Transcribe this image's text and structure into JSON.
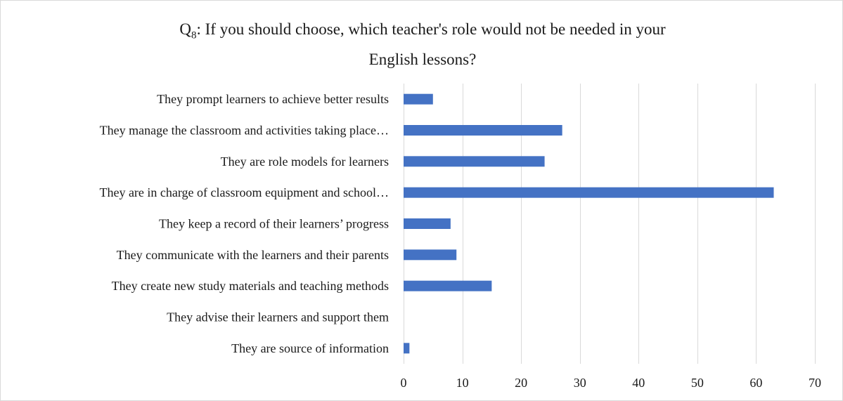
{
  "chart_data": {
    "type": "bar",
    "orientation": "horizontal",
    "title_prefix": "Q",
    "title_subscript": "8",
    "title_line1": ": If you should choose, which teacher's role would not be needed in your",
    "title_line2": "English lessons?",
    "categories": [
      "They prompt learners to achieve better results",
      "They manage the classroom and activities taking place…",
      "They are role models for learners",
      "They are in charge of classroom equipment and school…",
      "They keep a record of their learners’ progress",
      "They communicate with the learners and their parents",
      "They create new study materials and teaching methods",
      "They advise their learners and support them",
      "They are source of information"
    ],
    "values": [
      5,
      27,
      24,
      63,
      8,
      9,
      15,
      0,
      1
    ],
    "xlim": [
      0,
      70
    ],
    "xticks": [
      0,
      10,
      20,
      30,
      40,
      50,
      60,
      70
    ],
    "grid": true,
    "legend": "none",
    "bar_color": "#4472c4",
    "grid_color": "#d9d9d9"
  }
}
